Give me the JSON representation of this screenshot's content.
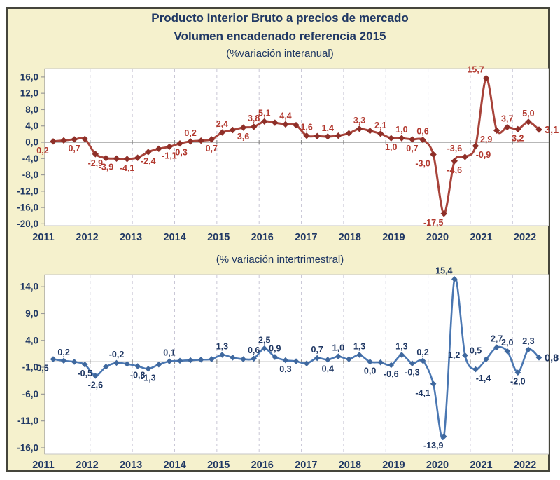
{
  "figure": {
    "title_line1": "Producto Interior Bruto a precios de mercado",
    "title_line2": "Volumen encadenado referencia 2015",
    "top_subtitle": "(%variación interanual)",
    "bottom_subtitle": "(% variación intertrimestral)"
  },
  "colors": {
    "background": "#f5f1cd",
    "frame_border": "#45453b",
    "navy_text": "#203864",
    "red_line": "#a8433a",
    "red_marker": "#8e2f28",
    "red_label": "#b2392f",
    "blue_line": "#4a77b2",
    "blue_marker": "#3f689e",
    "blue_label": "#203864",
    "gridline": "#c9c7d6",
    "zero_axis": "#8c8c8c",
    "axis_line": "#9a9a9a",
    "plot_border": "#c6c6c6",
    "plot_bg": "#ffffff"
  },
  "years": [
    "2011",
    "2012",
    "2013",
    "2014",
    "2015",
    "2016",
    "2017",
    "2018",
    "2019",
    "2020",
    "2021",
    "2022"
  ],
  "chart_data": [
    {
      "type": "line",
      "name": "pib-variacion-interanual",
      "title": "(%variación interanual)",
      "x_unit": "quarters 2011Q1 - 2022Q3",
      "points_per_year": 4,
      "grid": "vertical-dashed",
      "legend_position": "none",
      "ylim": [
        -20,
        16
      ],
      "y_ticks": [
        16,
        12,
        8,
        4,
        0,
        -4,
        -8,
        -12,
        -16,
        -20
      ],
      "y_tick_labels": [
        "16,0",
        "12,0",
        "8,0",
        "4,0",
        "0,0",
        "-4,0",
        "-8,0",
        "-12,0",
        "-16,0",
        "-20,0"
      ],
      "series_color": "red",
      "points": [
        {
          "v": 0.2,
          "l": "0,2",
          "p": "bl"
        },
        {
          "v": 0.45,
          "l": null
        },
        {
          "v": 0.7,
          "l": "0,7",
          "p": "b"
        },
        {
          "v": 0.8,
          "l": null
        },
        {
          "v": -2.9,
          "l": "-2,9",
          "p": "b"
        },
        {
          "v": -3.9,
          "l": "-3,9",
          "p": "b"
        },
        {
          "v": -4.0,
          "l": null
        },
        {
          "v": -4.1,
          "l": "-4,1",
          "p": "b"
        },
        {
          "v": -3.8,
          "l": null
        },
        {
          "v": -2.4,
          "l": "-2,4",
          "p": "b"
        },
        {
          "v": -1.6,
          "l": null
        },
        {
          "v": -1.1,
          "l": "-1,1",
          "p": "b"
        },
        {
          "v": -0.3,
          "l": "-0,3",
          "p": "b"
        },
        {
          "v": 0.2,
          "l": "0,2",
          "p": "a"
        },
        {
          "v": 0.4,
          "l": null
        },
        {
          "v": 0.7,
          "l": "0,7",
          "p": "b"
        },
        {
          "v": 2.4,
          "l": "2,4",
          "p": "a"
        },
        {
          "v": 3.0,
          "l": null
        },
        {
          "v": 3.6,
          "l": "3,6",
          "p": "b"
        },
        {
          "v": 3.8,
          "l": "3,8",
          "p": "a"
        },
        {
          "v": 5.1,
          "l": "5,1",
          "p": "a"
        },
        {
          "v": 4.8,
          "l": null
        },
        {
          "v": 4.4,
          "l": "4,4",
          "p": "a"
        },
        {
          "v": 4.2,
          "l": null
        },
        {
          "v": 1.6,
          "l": "1,6",
          "p": "a"
        },
        {
          "v": 1.5,
          "l": null
        },
        {
          "v": 1.4,
          "l": "1,4",
          "p": "a"
        },
        {
          "v": 1.6,
          "l": null
        },
        {
          "v": 2.2,
          "l": null
        },
        {
          "v": 3.3,
          "l": "3,3",
          "p": "a"
        },
        {
          "v": 2.8,
          "l": null
        },
        {
          "v": 2.1,
          "l": "2,1",
          "p": "a"
        },
        {
          "v": 1.0,
          "l": "1,0",
          "p": "b"
        },
        {
          "v": 1.0,
          "l": "1,0",
          "p": "a"
        },
        {
          "v": 0.7,
          "l": "0,7",
          "p": "b"
        },
        {
          "v": 0.6,
          "l": "0,6",
          "p": "a"
        },
        {
          "v": -3.0,
          "l": "-3,0",
          "p": "bl"
        },
        {
          "v": -17.5,
          "l": "-17,5",
          "p": "bl"
        },
        {
          "v": -4.6,
          "l": "-4,6",
          "p": "b"
        },
        {
          "v": -3.6,
          "l": "-3,6",
          "p": "al"
        },
        {
          "v": -0.9,
          "l": "-0,9",
          "p": "br"
        },
        {
          "v": 15.7,
          "l": "15,7",
          "p": "al"
        },
        {
          "v": 2.9,
          "l": "2,9",
          "p": "bl"
        },
        {
          "v": 3.7,
          "l": "3,7",
          "p": "a"
        },
        {
          "v": 3.2,
          "l": "3,2",
          "p": "b"
        },
        {
          "v": 5.0,
          "l": "5,0",
          "p": "a"
        },
        {
          "v": 3.1,
          "l": "3,1",
          "p": "e"
        }
      ]
    },
    {
      "type": "line",
      "name": "pib-variacion-intertrimestral",
      "title": "(% variación intertrimestral)",
      "x_unit": "quarters 2011Q1 - 2022Q3",
      "points_per_year": 4,
      "grid": "vertical-dashed",
      "legend_position": "none",
      "ylim": [
        -16,
        14
      ],
      "y_ticks": [
        14,
        9,
        4,
        -1,
        -6,
        -11,
        -16
      ],
      "y_tick_labels": [
        "14,0",
        "9,0",
        "4,0",
        "-1,0",
        "-6,0",
        "-11,0",
        "-16,0"
      ],
      "series_color": "blue",
      "points": [
        {
          "v": 0.5,
          "l": "0,5",
          "p": "bl"
        },
        {
          "v": 0.2,
          "l": "0,2",
          "p": "a"
        },
        {
          "v": 0.0,
          "l": null
        },
        {
          "v": -0.5,
          "l": "-0,5",
          "p": "b"
        },
        {
          "v": -2.6,
          "l": "-2,6",
          "p": "b"
        },
        {
          "v": -0.9,
          "l": null
        },
        {
          "v": -0.2,
          "l": "-0,2",
          "p": "a"
        },
        {
          "v": -0.4,
          "l": null
        },
        {
          "v": -0.8,
          "l": "-0,8",
          "p": "b"
        },
        {
          "v": -1.3,
          "l": "-1,3",
          "p": "b"
        },
        {
          "v": -0.5,
          "l": null
        },
        {
          "v": 0.1,
          "l": "0,1",
          "p": "a"
        },
        {
          "v": 0.2,
          "l": null
        },
        {
          "v": 0.3,
          "l": null
        },
        {
          "v": 0.4,
          "l": null
        },
        {
          "v": 0.5,
          "l": null
        },
        {
          "v": 1.3,
          "l": "1,3",
          "p": "a"
        },
        {
          "v": 0.8,
          "l": null
        },
        {
          "v": 0.5,
          "l": null
        },
        {
          "v": 0.6,
          "l": "0,6",
          "p": "a"
        },
        {
          "v": 2.5,
          "l": "2,5",
          "p": "a"
        },
        {
          "v": 0.9,
          "l": "0,9",
          "p": "a"
        },
        {
          "v": 0.3,
          "l": "0,3",
          "p": "b"
        },
        {
          "v": 0.1,
          "l": null
        },
        {
          "v": -0.3,
          "l": null
        },
        {
          "v": 0.7,
          "l": "0,7",
          "p": "a"
        },
        {
          "v": 0.4,
          "l": "0,4",
          "p": "b"
        },
        {
          "v": 1.0,
          "l": "1,0",
          "p": "a"
        },
        {
          "v": 0.5,
          "l": null
        },
        {
          "v": 1.3,
          "l": "1,3",
          "p": "a"
        },
        {
          "v": 0.0,
          "l": "0,0",
          "p": "b"
        },
        {
          "v": -0.1,
          "l": null
        },
        {
          "v": -0.6,
          "l": "-0,6",
          "p": "b"
        },
        {
          "v": 1.3,
          "l": "1,3",
          "p": "a"
        },
        {
          "v": -0.3,
          "l": "-0,3",
          "p": "b"
        },
        {
          "v": 0.2,
          "l": "0,2",
          "p": "a"
        },
        {
          "v": -4.1,
          "l": "-4,1",
          "p": "bl"
        },
        {
          "v": -13.9,
          "l": "-13,9",
          "p": "bl"
        },
        {
          "v": 15.4,
          "l": "15,4",
          "p": "al"
        },
        {
          "v": 1.2,
          "l": "1,2",
          "p": "l"
        },
        {
          "v": -1.4,
          "l": "-1,4",
          "p": "br"
        },
        {
          "v": 0.5,
          "l": "0,5",
          "p": "al"
        },
        {
          "v": 2.7,
          "l": "2,7",
          "p": "a"
        },
        {
          "v": 2.0,
          "l": "2,0",
          "p": "a"
        },
        {
          "v": -2.0,
          "l": "-2,0",
          "p": "b"
        },
        {
          "v": 2.3,
          "l": "2,3",
          "p": "a"
        },
        {
          "v": 0.8,
          "l": "0,8",
          "p": "e"
        }
      ]
    }
  ]
}
